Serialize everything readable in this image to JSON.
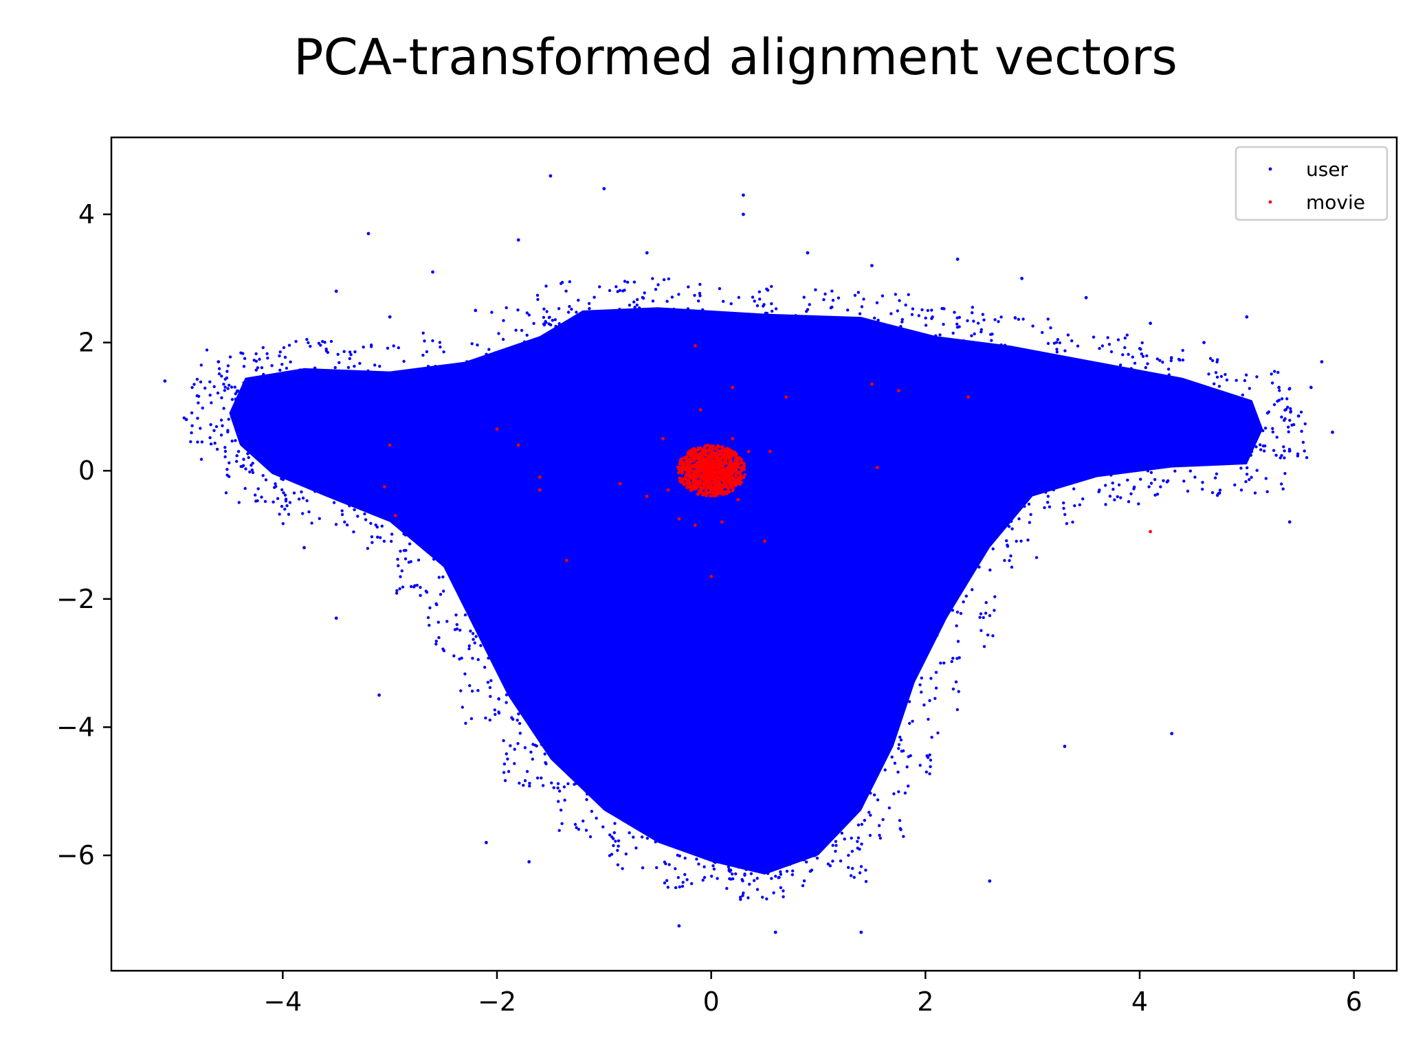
{
  "chart_data": {
    "type": "scatter",
    "title": "PCA-transformed alignment vectors",
    "xlabel": "",
    "ylabel": "",
    "xlim": [
      -5.6,
      6.4
    ],
    "ylim": [
      -7.8,
      5.2
    ],
    "xticks": [
      -4,
      -2,
      0,
      2,
      4,
      6
    ],
    "yticks": [
      -6,
      -4,
      -2,
      0,
      2,
      4
    ],
    "xtick_labels": [
      "−4",
      "−2",
      "0",
      "2",
      "4",
      "6"
    ],
    "ytick_labels": [
      "−6",
      "−4",
      "−2",
      "0",
      "2",
      "4"
    ],
    "grid": false,
    "legend": {
      "placement": "upper right",
      "entries": [
        "user",
        "movie"
      ]
    },
    "series": [
      {
        "name": "user",
        "color": "#0000ff",
        "description_of_extent": "dense blue cloud; left lobe from x≈-4.5 to -3 at y≈0 to 1.5, right lobe x≈3 to 5.5 at y≈0 to 1.5, lower body down to y≈-6.5 around x≈0.5, upper edge y≈2.5",
        "sample_points": [
          [
            -5.1,
            1.4
          ],
          [
            -4.9,
            0.8
          ],
          [
            -4.6,
            1.7
          ],
          [
            -4.4,
            0.9
          ],
          [
            -4.2,
            1.2
          ],
          [
            -3.9,
            0.5
          ],
          [
            -3.7,
            1.6
          ],
          [
            -3.5,
            2.8
          ],
          [
            -3.2,
            3.7
          ],
          [
            -3.0,
            2.4
          ],
          [
            -2.6,
            3.1
          ],
          [
            -2.2,
            2.5
          ],
          [
            -1.8,
            3.6
          ],
          [
            -1.5,
            4.6
          ],
          [
            -1.0,
            4.4
          ],
          [
            -0.6,
            3.4
          ],
          [
            0.3,
            4.3
          ],
          [
            0.9,
            3.4
          ],
          [
            1.5,
            3.2
          ],
          [
            2.3,
            3.3
          ],
          [
            2.9,
            3.0
          ],
          [
            3.5,
            2.7
          ],
          [
            4.1,
            2.3
          ],
          [
            4.6,
            2.0
          ],
          [
            5.0,
            2.4
          ],
          [
            5.3,
            1.3
          ],
          [
            5.6,
            1.3
          ],
          [
            5.7,
            1.7
          ],
          [
            5.8,
            0.6
          ],
          [
            5.4,
            -0.8
          ],
          [
            4.3,
            -4.1
          ],
          [
            3.3,
            -4.3
          ],
          [
            2.6,
            -6.4
          ],
          [
            1.4,
            -7.2
          ],
          [
            0.6,
            -7.2
          ],
          [
            -0.3,
            -7.1
          ],
          [
            -1.7,
            -6.1
          ],
          [
            -2.1,
            -5.8
          ],
          [
            -3.1,
            -3.5
          ],
          [
            -3.5,
            -2.3
          ],
          [
            -3.8,
            -1.2
          ],
          [
            0.3,
            4.0
          ]
        ]
      },
      {
        "name": "movie",
        "color": "#ff0000",
        "description_of_extent": "dense red cluster centered near (0, 0) with radius ≈0.3, plus sparse outliers",
        "sample_points": [
          [
            -0.15,
            1.95
          ],
          [
            -0.1,
            0.95
          ],
          [
            0.2,
            1.3
          ],
          [
            0.7,
            1.15
          ],
          [
            1.5,
            1.35
          ],
          [
            1.75,
            1.25
          ],
          [
            2.4,
            1.15
          ],
          [
            -2.0,
            0.65
          ],
          [
            -1.8,
            0.4
          ],
          [
            -3.0,
            0.4
          ],
          [
            -3.05,
            -0.25
          ],
          [
            -2.95,
            -0.7
          ],
          [
            -1.6,
            -0.1
          ],
          [
            -1.6,
            -0.3
          ],
          [
            -1.35,
            -1.4
          ],
          [
            -0.85,
            -0.2
          ],
          [
            -0.6,
            -0.4
          ],
          [
            -0.4,
            -0.3
          ],
          [
            -0.3,
            -0.75
          ],
          [
            -0.15,
            -0.85
          ],
          [
            0.1,
            -0.8
          ],
          [
            0.0,
            -1.65
          ],
          [
            0.35,
            0.3
          ],
          [
            0.55,
            0.3
          ],
          [
            0.5,
            -1.1
          ],
          [
            1.55,
            0.05
          ],
          [
            4.1,
            -0.95
          ],
          [
            -0.45,
            0.5
          ],
          [
            0.2,
            0.5
          ],
          [
            0.25,
            -0.45
          ]
        ]
      }
    ]
  }
}
